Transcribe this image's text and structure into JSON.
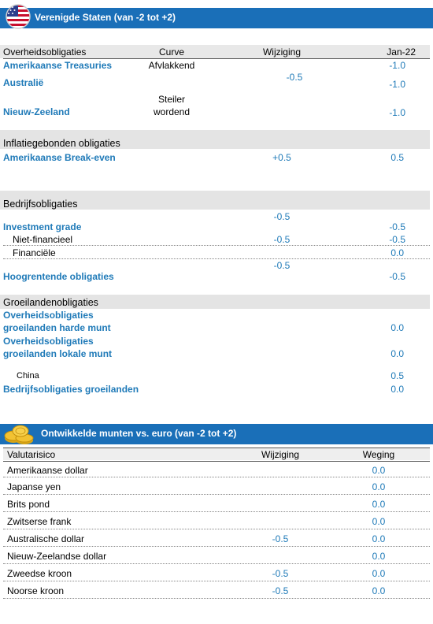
{
  "us_banner": {
    "title": "Verenigde Staten (van -2 tot +2)",
    "flag_icon": "us-flag-icon"
  },
  "bonds": {
    "columns": {
      "category": "Overheidsobligaties",
      "curve": "Curve",
      "change": "Wijziging",
      "jan": "Jan-22"
    },
    "government": {
      "treasuries": {
        "label": "Amerikaanse Treasuries",
        "curve": "Afvlakkend",
        "jan": "-1.0"
      },
      "australia": {
        "label": "Australië",
        "jan": "-1.0"
      },
      "shared_change": "-0.5",
      "newzealand": {
        "label": "Nieuw-Zeeland",
        "curve_line1": "Steiler",
        "curve_line2": "wordend",
        "jan": "-1.0"
      }
    },
    "inflation": {
      "header": "Inflatiegebonden obligaties",
      "breakeven": {
        "label": "Amerikaanse Break-even",
        "change": "+0.5",
        "jan": "0.5"
      }
    },
    "corporate": {
      "header": "Bedrijfsobligaties",
      "ig_change": "-0.5",
      "investment_grade": {
        "label": "Investment grade",
        "jan": "-0.5"
      },
      "nonfinancial": {
        "label": "Niet-financieel",
        "change": "-0.5",
        "jan": "-0.5"
      },
      "financial": {
        "label": "Financiële",
        "jan": "0.0"
      },
      "hy_change": "-0.5",
      "high_yield": {
        "label": "Hoogrentende obligaties",
        "jan": "-0.5"
      }
    },
    "emerging": {
      "header": "Groeilandenobligaties",
      "hard": {
        "line1": "Overheidsobligaties",
        "line2": "groeilanden harde munt",
        "jan": "0.0"
      },
      "local": {
        "line1": "Overheidsobligaties",
        "line2": "groeilanden lokale munt",
        "jan": "0.0"
      },
      "china": {
        "label": "China",
        "jan": "0.5"
      },
      "corporate": {
        "label": "Bedrijfsobligaties groeilanden",
        "jan": "0.0"
      }
    }
  },
  "fx_banner": {
    "title": "Ontwikkelde munten vs. euro (van -2 tot +2)",
    "coins_icon": "coins-icon"
  },
  "fx": {
    "columns": {
      "risk": "Valutarisico",
      "change": "Wijziging",
      "weight": "Weging"
    },
    "rows": [
      {
        "label": "Amerikaanse dollar",
        "change": "",
        "weight": "0.0"
      },
      {
        "label": "Japanse yen",
        "change": "",
        "weight": "0.0"
      },
      {
        "label": "Brits pond",
        "change": "",
        "weight": "0.0"
      },
      {
        "label": "Zwitserse frank",
        "change": "",
        "weight": "0.0"
      },
      {
        "label": "Australische dollar",
        "change": "-0.5",
        "weight": "0.0"
      },
      {
        "label": "Nieuw-Zeelandse dollar",
        "change": "",
        "weight": "0.0"
      },
      {
        "label": "Zweedse kroon",
        "change": "-0.5",
        "weight": "0.0"
      },
      {
        "label": "Noorse kroon",
        "change": "-0.5",
        "weight": "0.0"
      }
    ]
  }
}
